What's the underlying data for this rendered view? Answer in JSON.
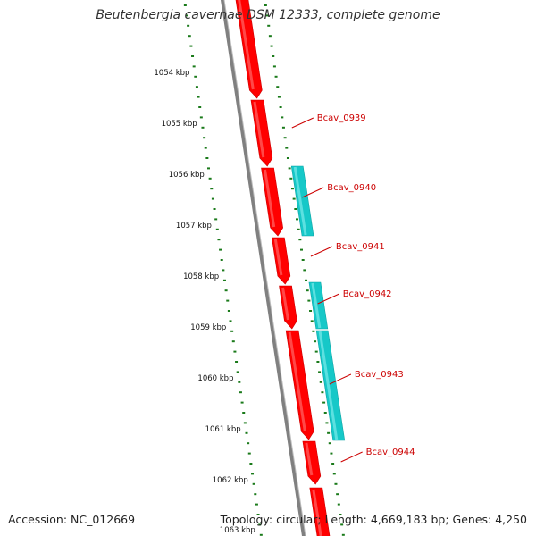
{
  "title": "Beutenbergia cavernae DSM 12333, complete genome",
  "footer": {
    "accession": "Accession: NC_012669",
    "stats": "Topology: circular; Length: 4,669,183 bp; Genes: 4,250"
  },
  "colors": {
    "forward_gene": "#ff0000",
    "forward_gene_light": "#ff5a5a",
    "reverse_gene": "#16c8c8",
    "reverse_gene_light": "#6ee6e6",
    "backbone": "#808080",
    "ticks": "#1a7a1a",
    "label": "#cc0000"
  },
  "ruler": {
    "labels": [
      "1054 kbp",
      "1055 kbp",
      "1056 kbp",
      "1057 kbp",
      "1058 kbp",
      "1059 kbp",
      "1060 kbp",
      "1061 kbp",
      "1062 kbp",
      "1063 kbp"
    ]
  },
  "genes": [
    {
      "name": "Bcav_0939",
      "strand": "forward"
    },
    {
      "name": "Bcav_0940",
      "strand": "forward"
    },
    {
      "name": "Bcav_0941",
      "strand": "forward"
    },
    {
      "name": "Bcav_0942",
      "strand": "forward"
    },
    {
      "name": "Bcav_0943",
      "strand": "forward"
    },
    {
      "name": "Bcav_0944",
      "strand": "forward"
    }
  ]
}
